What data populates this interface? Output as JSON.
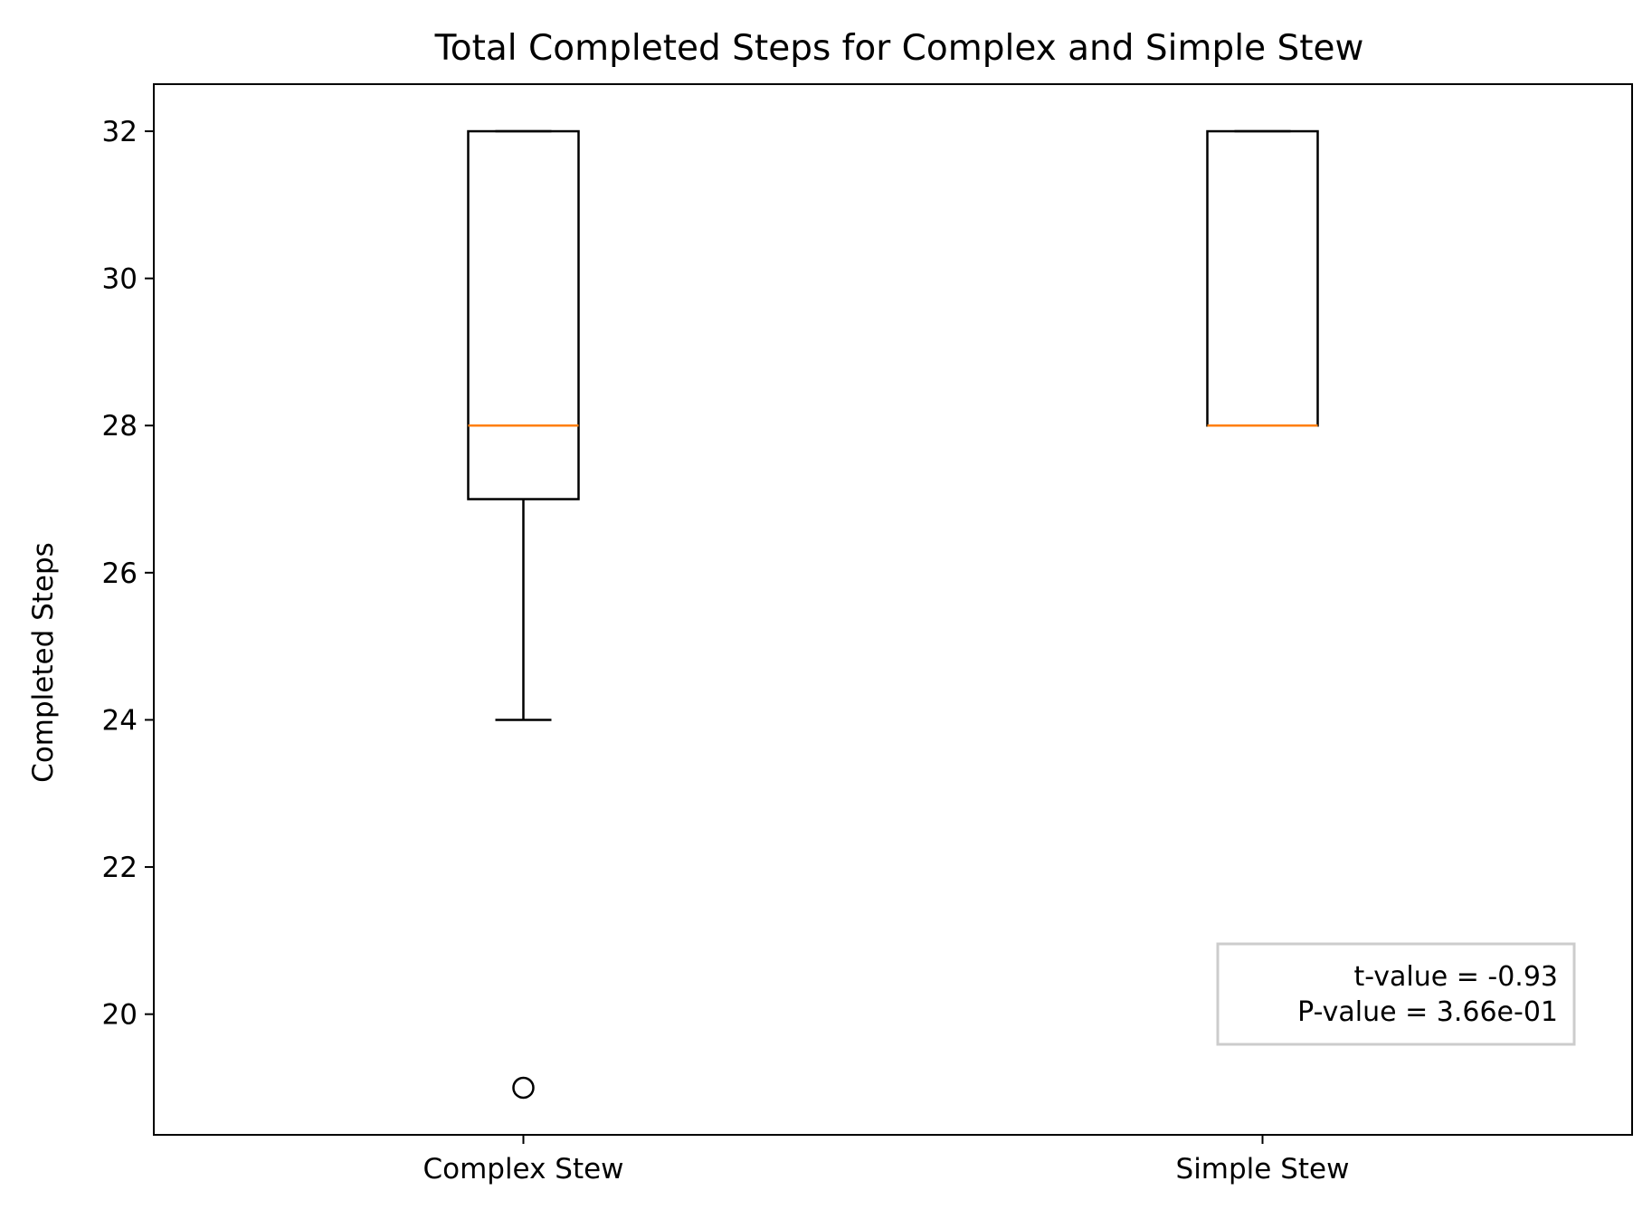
{
  "chart_data": {
    "type": "box",
    "title": "Total Completed Steps for Complex and Simple Stew",
    "xlabel": "",
    "ylabel": "Completed Steps",
    "ylim": [
      18.36,
      32.64
    ],
    "yticks": [
      20,
      22,
      24,
      26,
      28,
      30,
      32
    ],
    "categories": [
      "Complex Stew",
      "Simple Stew"
    ],
    "series": [
      {
        "category": "Complex Stew",
        "whisker_low": 24,
        "q1": 27,
        "median": 28,
        "q3": 32,
        "whisker_high": 32,
        "outliers": [
          19
        ]
      },
      {
        "category": "Simple Stew",
        "whisker_low": 28,
        "q1": 28,
        "median": 28,
        "q3": 32,
        "whisker_high": 32,
        "outliers": []
      }
    ],
    "annotation": {
      "t_value": "t-value = -0.93",
      "p_value": "P-value = 3.66e-01",
      "placement": "bottom-right"
    },
    "colors": {
      "box": "#000000",
      "median": "#ff7f0e",
      "annotation_border": "#cccccc"
    },
    "grid": false,
    "legend": "none"
  }
}
